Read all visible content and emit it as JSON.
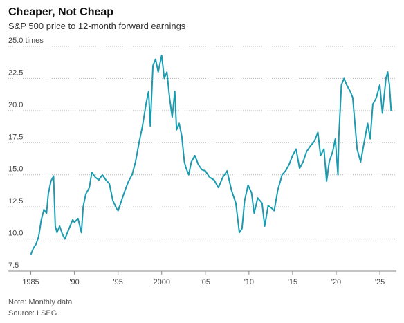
{
  "chart_data": {
    "type": "line",
    "title": "Cheaper, Not Cheap",
    "subtitle": "S&P 500 price to 12-month forward earnings",
    "note": "Note: Monthly data",
    "source": "Source: LSEG",
    "grid": true,
    "xlim": [
      1984.4,
      2026.9
    ],
    "ylim": [
      7.5,
      25
    ],
    "yticks": [
      {
        "value": 7.5,
        "label": "7.5"
      },
      {
        "value": 10,
        "label": "10.0"
      },
      12.5,
      {
        "value": 15,
        "label": "15.0"
      },
      17.5,
      {
        "value": 20,
        "label": "20.0"
      },
      22.5,
      {
        "value": 25,
        "label": "25.0 times"
      }
    ],
    "xticks": [
      1985,
      {
        "value": 1990,
        "label": "'90"
      },
      {
        "value": 1995,
        "label": "'95"
      },
      2000,
      {
        "value": 2005,
        "label": "'05"
      },
      {
        "value": 2010,
        "label": "'10"
      },
      {
        "value": 2015,
        "label": "'15"
      },
      {
        "value": 2020,
        "label": "'20"
      },
      {
        "value": 2025,
        "label": "'25"
      }
    ],
    "x": [
      1985.0,
      1985.3,
      1985.6,
      1985.9,
      1986.2,
      1986.5,
      1986.8,
      1987.0,
      1987.3,
      1987.6,
      1987.8,
      1988.0,
      1988.3,
      1988.6,
      1988.9,
      1989.2,
      1989.5,
      1989.8,
      1990.0,
      1990.4,
      1990.8,
      1991.0,
      1991.3,
      1991.7,
      1992.0,
      1992.4,
      1992.8,
      1993.2,
      1993.6,
      1994.0,
      1994.4,
      1994.8,
      1995.0,
      1995.4,
      1995.8,
      1996.2,
      1996.6,
      1997.0,
      1997.4,
      1997.8,
      1998.2,
      1998.5,
      1998.7,
      1999.0,
      1999.3,
      1999.6,
      2000.0,
      2000.3,
      2000.6,
      2000.9,
      2001.2,
      2001.5,
      2001.7,
      2002.0,
      2002.3,
      2002.6,
      2002.8,
      2003.1,
      2003.4,
      2003.8,
      2004.2,
      2004.6,
      2005.0,
      2005.5,
      2006.0,
      2006.5,
      2007.0,
      2007.5,
      2008.0,
      2008.5,
      2008.9,
      2009.2,
      2009.5,
      2009.9,
      2010.3,
      2010.6,
      2011.0,
      2011.5,
      2011.8,
      2012.2,
      2012.6,
      2012.9,
      2013.3,
      2013.8,
      2014.2,
      2014.6,
      2015.0,
      2015.4,
      2015.8,
      2016.2,
      2016.6,
      2017.0,
      2017.5,
      2017.9,
      2018.2,
      2018.6,
      2018.9,
      2019.2,
      2019.6,
      2019.9,
      2020.2,
      2020.3,
      2020.6,
      2020.9,
      2021.2,
      2021.6,
      2021.9,
      2022.4,
      2022.8,
      2023.2,
      2023.6,
      2023.9,
      2024.2,
      2024.6,
      2025.0,
      2025.3,
      2025.7,
      2025.9,
      2026.1,
      2026.3
    ],
    "series": [
      {
        "name": "S&P 500 forward P/E",
        "color": "#1a9bb0",
        "values": [
          8.8,
          9.3,
          9.6,
          10.2,
          11.5,
          12.3,
          12.0,
          13.5,
          14.5,
          14.9,
          11.0,
          10.5,
          11.0,
          10.4,
          10.0,
          10.5,
          11.0,
          11.5,
          11.3,
          11.6,
          10.5,
          12.5,
          13.5,
          14.0,
          15.2,
          14.8,
          14.6,
          15.0,
          14.6,
          14.3,
          13.0,
          12.4,
          12.2,
          13.0,
          13.8,
          14.5,
          15.0,
          16.0,
          17.5,
          18.8,
          20.5,
          21.5,
          18.8,
          23.5,
          24.0,
          23.0,
          24.3,
          22.5,
          23.0,
          21.0,
          19.5,
          21.5,
          18.5,
          19.0,
          18.0,
          16.0,
          15.5,
          15.0,
          16.0,
          16.5,
          15.8,
          15.4,
          15.3,
          14.8,
          14.6,
          14.0,
          14.8,
          15.3,
          13.8,
          12.8,
          10.5,
          10.8,
          13.0,
          14.2,
          13.6,
          12.0,
          13.2,
          12.8,
          11.0,
          12.6,
          12.4,
          12.2,
          13.8,
          15.0,
          15.3,
          15.8,
          16.5,
          17.0,
          15.5,
          16.0,
          16.8,
          17.2,
          17.6,
          18.3,
          16.5,
          17.0,
          14.5,
          16.0,
          16.8,
          17.8,
          15.0,
          18.0,
          22.0,
          22.5,
          22.0,
          21.5,
          21.0,
          17.0,
          16.0,
          17.5,
          19.0,
          17.8,
          20.5,
          21.0,
          22.0,
          19.8,
          22.5,
          23.0,
          22.0,
          20.0
        ]
      }
    ]
  }
}
